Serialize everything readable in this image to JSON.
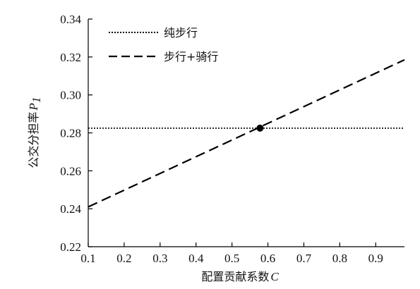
{
  "chart_data": {
    "type": "line",
    "title": "",
    "xlabel": "配置贡献系数",
    "xlabel_var": "C",
    "ylabel": "公交分担率",
    "ylabel_var": "P",
    "ylabel_sub": "1",
    "xlim": [
      0.1,
      0.98
    ],
    "ylim": [
      0.22,
      0.34
    ],
    "x_ticks": [
      "0.1",
      "0.2",
      "0.3",
      "0.4",
      "0.5",
      "0.6",
      "0.7",
      "0.8",
      "0.9"
    ],
    "y_ticks": [
      "0.22",
      "0.24",
      "0.26",
      "0.28",
      "0.30",
      "0.32",
      "0.34"
    ],
    "grid": false,
    "legend_position": "top-left",
    "series": [
      {
        "name": "纯步行",
        "style": "dotted",
        "color": "#000000",
        "x": [
          0.1,
          0.98
        ],
        "y": [
          0.2825,
          0.2825
        ]
      },
      {
        "name": "步行+骑行",
        "style": "dashed",
        "color": "#000000",
        "x": [
          0.1,
          0.98
        ],
        "y": [
          0.241,
          0.3185
        ]
      }
    ],
    "annotations": [
      {
        "type": "point",
        "x": 0.578,
        "y": 0.2825,
        "color": "#000000"
      }
    ]
  }
}
